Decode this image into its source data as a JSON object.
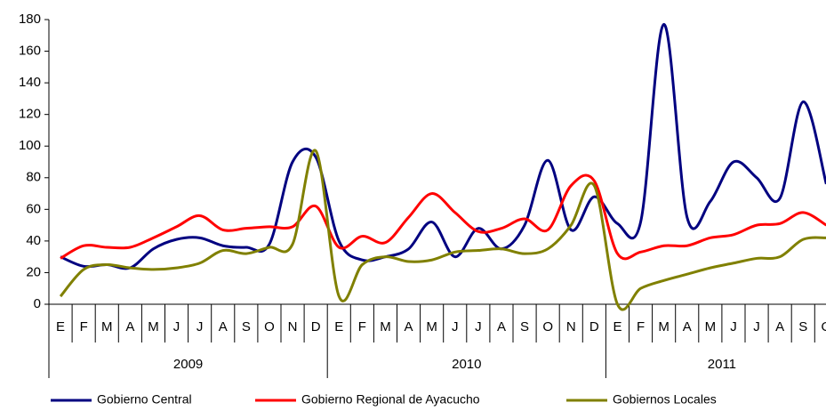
{
  "chart_data": {
    "type": "line",
    "categories": [
      "E",
      "F",
      "M",
      "A",
      "M",
      "J",
      "J",
      "A",
      "S",
      "O",
      "N",
      "D",
      "E",
      "F",
      "M",
      "A",
      "M",
      "J",
      "J",
      "A",
      "S",
      "O",
      "N",
      "D",
      "E",
      "F",
      "M",
      "A",
      "M",
      "J",
      "J",
      "A",
      "S",
      "O"
    ],
    "years": [
      "2009",
      "2010",
      "2011"
    ],
    "ylim": [
      0,
      180
    ],
    "yticks": [
      0,
      20,
      40,
      60,
      80,
      100,
      120,
      140,
      160,
      180
    ],
    "series": [
      {
        "name": "Gobierno Central",
        "color": "#000080",
        "values": [
          30,
          24,
          25,
          23,
          35,
          41,
          42,
          37,
          36,
          38,
          90,
          93,
          40,
          28,
          30,
          35,
          52,
          30,
          48,
          35,
          50,
          91,
          47,
          68,
          51,
          52,
          177,
          55,
          65,
          90,
          80,
          67,
          128,
          76
        ]
      },
      {
        "name": "Gobierno Regional de Ayacucho",
        "color": "#ff0000",
        "values": [
          29,
          37,
          36,
          36,
          42,
          49,
          56,
          47,
          48,
          49,
          49,
          62,
          36,
          43,
          39,
          55,
          70,
          58,
          46,
          48,
          54,
          47,
          75,
          78,
          32,
          33,
          37,
          37,
          42,
          44,
          50,
          51,
          58,
          50
        ]
      },
      {
        "name": "Gobiernos Locales",
        "color": "#808000",
        "values": [
          5,
          22,
          25,
          23,
          22,
          23,
          26,
          34,
          32,
          36,
          38,
          97,
          5,
          25,
          30,
          27,
          28,
          33,
          34,
          35,
          32,
          35,
          50,
          75,
          0,
          10,
          15,
          19,
          23,
          26,
          29,
          30,
          41,
          42
        ]
      }
    ]
  }
}
